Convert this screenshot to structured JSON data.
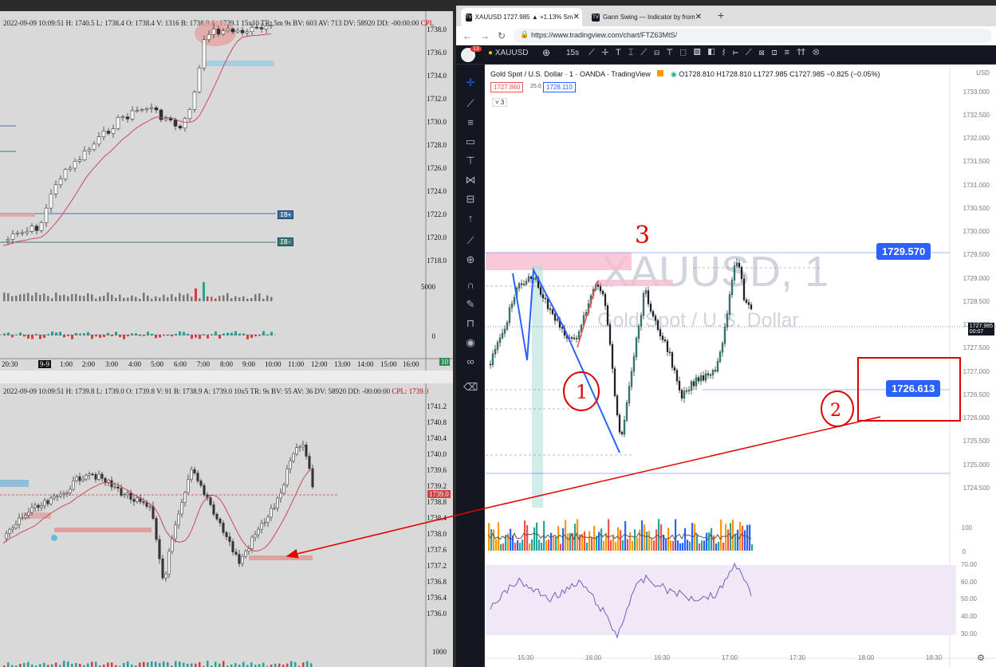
{
  "left_top": {
    "stats": "2022-09-09 10:09:51 H: 1740.5 L: 1738.4 O: 1738.4 V: 1316 B: 1738.9 A: 1739.1 15x10 TR: 5m 9s BV: 603 AV: 713 DV: 58920 DD: -00:00:00",
    "cpl_label": "CPL",
    "price_axis": [
      "1738.0",
      "1736.0",
      "1734.0",
      "1732.0",
      "1730.0",
      "1728.0",
      "1726.0",
      "1724.0",
      "1722.0",
      "1720.0",
      "1718.0"
    ],
    "vol_axis": [
      "5000",
      "0"
    ],
    "tag_ib_high": "IB+",
    "tag_ib_low": "IB-",
    "time_axis": [
      "20:30",
      "9-9",
      "1:00",
      "2:00",
      "3:00",
      "4:00",
      "5:00",
      "6:00",
      "7:00",
      "8:00",
      "9:00",
      "10:00",
      "11:00",
      "12:00",
      "13:00",
      "14:00",
      "15:00",
      "16:00"
    ],
    "corner_tag": "10"
  },
  "left_bottom": {
    "stats": "2022-09-09 10:09:51 H: 1739.8 L: 1739.0 O: 1739.8 V: 91 B: 1738.9 A: 1739.0 10x5 TR: 9s BV: 55 AV: 36 DV: 58920 DD: -00:00:00",
    "cpl_label": "CPL: 1739.0",
    "price_axis": [
      "1741.2",
      "1740.8",
      "1740.4",
      "1740.0",
      "1739.6",
      "1739.2",
      "1738.8",
      "1738.4",
      "1738.0",
      "1737.6",
      "1737.2",
      "1736.8",
      "1736.4",
      "1736.0"
    ],
    "current_price": "1739.0",
    "vol_axis_top": "1000"
  },
  "browser": {
    "tabs": [
      {
        "label": "XAUUSD 1727.985 ▲ +1.13% Sm",
        "active": true
      },
      {
        "label": "Gann Swing — Indicator by from",
        "active": false
      }
    ],
    "new_tab": "+",
    "url": "https://www.tradingview.com/chart/FTZ63MtS/",
    "badge": "13",
    "symbol": "XAUUSD",
    "interval": "15s"
  },
  "chart": {
    "legend_title": "Gold Spot / U.S. Dollar · 1 · OANDA · TradingView",
    "ohlc": "O1728.810 H1728.810 L1727.985 C1727.985 −0.825 (−0.05%)",
    "sell_price": "1727.860",
    "spread": "25.0",
    "buy_price": "1728.110",
    "indicator_count": "3",
    "watermark_symbol": "XAUUSD, 1",
    "watermark_name": "Gold Spot / U.S. Dollar",
    "currency": "USD",
    "price_axis": [
      "1733.000",
      "1732.500",
      "1732.000",
      "1731.500",
      "1731.000",
      "1730.500",
      "1730.000",
      "1729.500",
      "1729.000",
      "1728.500",
      "1728.000",
      "1727.500",
      "1727.000",
      "1726.500",
      "1726.000",
      "1725.500",
      "1725.000",
      "1724.500"
    ],
    "last_price": "1727.985",
    "countdown": "00:07",
    "level_high": "1729.570",
    "level_low": "1726.613",
    "vol_axis": [
      "100",
      "0"
    ],
    "rsi_axis": [
      "70.00",
      "60.00",
      "50.00",
      "40.00",
      "30.00"
    ],
    "time_axis": [
      "15:30",
      "16:00",
      "16:30",
      "17:00",
      "17:30",
      "18:00",
      "18:30"
    ]
  },
  "annotations": {
    "mark_1": "1",
    "mark_2": "2",
    "mark_3": "3"
  },
  "colors": {
    "up": "#26a69a",
    "down": "#ef5350",
    "accent": "#2962ff",
    "annotation": "#e00000",
    "ma_line": "#d0455a"
  }
}
